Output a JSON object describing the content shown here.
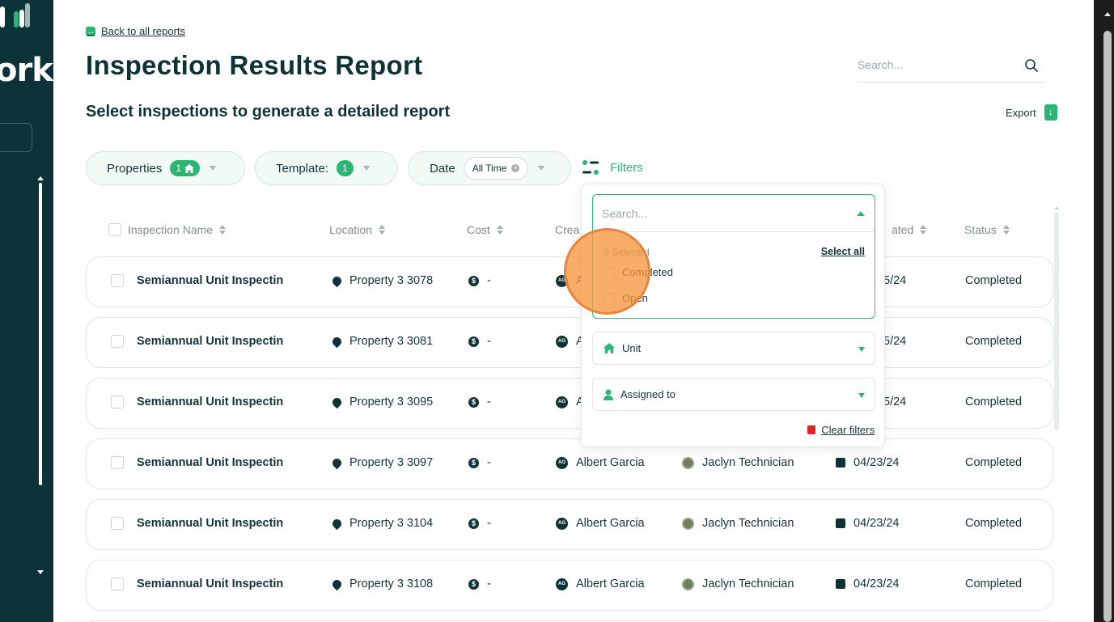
{
  "sidebar": {
    "logo_text": "ork",
    "logo_bar_colors": [
      "#ffffff",
      "#2bb673",
      "#ffffff",
      "#a4b4b6"
    ]
  },
  "header": {
    "back_link": "Back to all reports",
    "title": "Inspection Results Report",
    "subtitle": "Select inspections to generate a detailed report",
    "search_placeholder": "Search...",
    "export_label": "Export"
  },
  "filters": {
    "properties": {
      "label": "Properties",
      "count": "1"
    },
    "template": {
      "label": "Template:",
      "count": "1"
    },
    "date": {
      "label": "Date",
      "value": "All Time"
    },
    "filters_label": "Filters"
  },
  "table": {
    "columns": [
      "Inspection Name",
      "Location",
      "Cost",
      "Crea",
      "ated",
      "Status"
    ],
    "rows": [
      {
        "name": "Semiannual Unit Inspectin",
        "location": "Property 3 3078",
        "cost": "-",
        "created_by": "A",
        "assigned": "",
        "date": "5/24",
        "status": "Completed"
      },
      {
        "name": "Semiannual Unit Inspectin",
        "location": "Property 3 3081",
        "cost": "-",
        "created_by": "A",
        "assigned": "",
        "date": "5/24",
        "status": "Completed"
      },
      {
        "name": "Semiannual Unit Inspectin",
        "location": "Property 3 3095",
        "cost": "-",
        "created_by": "A",
        "assigned": "",
        "date": "5/24",
        "status": "Completed"
      },
      {
        "name": "Semiannual Unit Inspectin",
        "location": "Property 3 3097",
        "cost": "-",
        "created_by": "Albert Garcia",
        "assigned": "Jaclyn Technician",
        "date": "04/23/24",
        "status": "Completed"
      },
      {
        "name": "Semiannual Unit Inspectin",
        "location": "Property 3 3104",
        "cost": "-",
        "created_by": "Albert Garcia",
        "assigned": "Jaclyn Technician",
        "date": "04/23/24",
        "status": "Completed"
      },
      {
        "name": "Semiannual Unit Inspectin",
        "location": "Property 3 3108",
        "cost": "-",
        "created_by": "Albert Garcia",
        "assigned": "Jaclyn Technician",
        "date": "04/23/24",
        "status": "Completed"
      }
    ],
    "avatar_initials": "AG"
  },
  "filter_panel": {
    "status_search_placeholder": "Search...",
    "selected_count": "0 Selected",
    "select_all": "Select all",
    "options": [
      "Completed",
      "Open"
    ],
    "unit_label": "Unit",
    "assigned_label": "Assigned to",
    "clear_label": "Clear filters"
  },
  "colors": {
    "accent": "#2bb673",
    "sidebar_bg": "#0c3438",
    "text_dark": "#0e3337",
    "click_marker": "#f6963e"
  }
}
